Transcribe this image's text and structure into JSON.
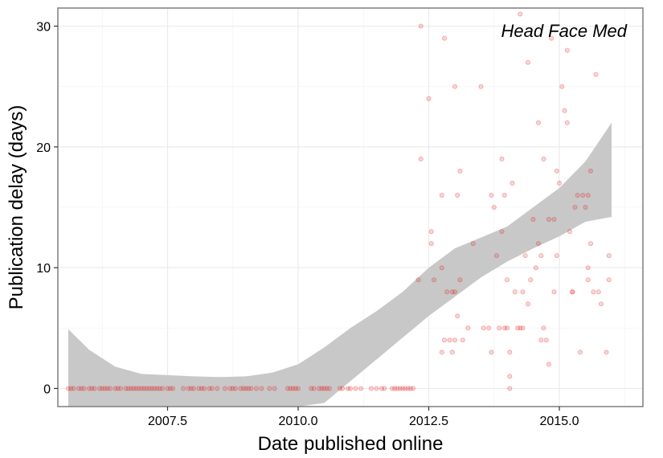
{
  "chart_data": {
    "type": "scatter",
    "title": "",
    "xlabel": "Date published online",
    "ylabel": "Publication delay (days)",
    "annotation": "Head Face Med",
    "xlim": [
      2005.4,
      2016.6
    ],
    "ylim": [
      -1.5,
      31.5
    ],
    "x_ticks": [
      2007.5,
      2010.0,
      2012.5,
      2015.0
    ],
    "x_tick_labels": [
      "2007.5",
      "2010.0",
      "2012.5",
      "2015.0"
    ],
    "y_ticks": [
      0,
      10,
      20,
      30
    ],
    "y_tick_labels": [
      "0",
      "10",
      "20",
      "30"
    ],
    "grid": true,
    "point_color": "#e31a1c",
    "band_color": "#c8c8c8",
    "panel_border_color": "#7f7f7f",
    "grid_color": "#ebebeb",
    "points": [
      [
        5.6,
        0
      ],
      [
        5.65,
        0
      ],
      [
        5.7,
        0
      ],
      [
        5.8,
        0
      ],
      [
        5.85,
        0
      ],
      [
        5.9,
        0
      ],
      [
        6.0,
        0
      ],
      [
        6.05,
        0
      ],
      [
        6.1,
        0
      ],
      [
        6.2,
        0
      ],
      [
        6.25,
        0
      ],
      [
        6.3,
        0
      ],
      [
        6.35,
        0
      ],
      [
        6.4,
        0
      ],
      [
        6.5,
        0
      ],
      [
        6.55,
        0
      ],
      [
        6.6,
        0
      ],
      [
        6.7,
        0
      ],
      [
        6.75,
        0
      ],
      [
        6.8,
        0
      ],
      [
        6.85,
        0
      ],
      [
        6.9,
        0
      ],
      [
        6.95,
        0
      ],
      [
        7.0,
        0
      ],
      [
        7.05,
        0
      ],
      [
        7.1,
        0
      ],
      [
        7.15,
        0
      ],
      [
        7.2,
        0
      ],
      [
        7.25,
        0
      ],
      [
        7.3,
        0
      ],
      [
        7.35,
        0
      ],
      [
        7.4,
        0
      ],
      [
        7.5,
        0
      ],
      [
        7.55,
        0
      ],
      [
        7.6,
        0
      ],
      [
        7.8,
        0
      ],
      [
        7.9,
        0
      ],
      [
        7.95,
        0
      ],
      [
        8.0,
        0
      ],
      [
        8.1,
        0
      ],
      [
        8.15,
        0
      ],
      [
        8.2,
        0
      ],
      [
        8.3,
        0
      ],
      [
        8.35,
        0
      ],
      [
        8.45,
        0
      ],
      [
        8.6,
        0
      ],
      [
        8.7,
        0
      ],
      [
        8.75,
        0
      ],
      [
        8.8,
        0
      ],
      [
        8.9,
        0
      ],
      [
        8.95,
        0
      ],
      [
        9.0,
        0
      ],
      [
        9.05,
        0
      ],
      [
        9.1,
        0
      ],
      [
        9.2,
        0
      ],
      [
        9.3,
        0
      ],
      [
        9.45,
        0
      ],
      [
        9.55,
        0
      ],
      [
        9.8,
        0
      ],
      [
        9.85,
        0
      ],
      [
        9.9,
        0
      ],
      [
        9.95,
        0
      ],
      [
        10.0,
        0
      ],
      [
        10.25,
        0
      ],
      [
        10.3,
        0
      ],
      [
        10.4,
        0
      ],
      [
        10.45,
        0
      ],
      [
        10.5,
        0
      ],
      [
        10.55,
        0
      ],
      [
        10.6,
        0
      ],
      [
        10.8,
        0
      ],
      [
        10.85,
        0
      ],
      [
        10.95,
        0
      ],
      [
        11.0,
        0
      ],
      [
        11.1,
        0
      ],
      [
        11.2,
        0
      ],
      [
        11.4,
        0
      ],
      [
        11.5,
        0
      ],
      [
        11.6,
        0
      ],
      [
        11.65,
        0
      ],
      [
        11.8,
        0
      ],
      [
        11.85,
        0
      ],
      [
        11.9,
        0
      ],
      [
        11.95,
        0
      ],
      [
        12.0,
        0
      ],
      [
        12.05,
        0
      ],
      [
        12.1,
        0
      ],
      [
        12.15,
        0
      ],
      [
        12.2,
        0
      ],
      [
        12.35,
        30
      ],
      [
        12.35,
        19
      ],
      [
        12.5,
        24
      ],
      [
        12.55,
        13
      ],
      [
        12.55,
        12
      ],
      [
        12.6,
        9
      ],
      [
        12.3,
        9
      ],
      [
        12.8,
        29
      ],
      [
        12.75,
        16
      ],
      [
        12.75,
        10
      ],
      [
        12.75,
        3
      ],
      [
        12.8,
        4
      ],
      [
        12.85,
        8
      ],
      [
        12.9,
        4
      ],
      [
        12.95,
        8
      ],
      [
        12.95,
        3
      ],
      [
        13.0,
        25
      ],
      [
        13.0,
        8
      ],
      [
        13.0,
        4
      ],
      [
        13.05,
        16
      ],
      [
        13.05,
        6
      ],
      [
        13.1,
        18
      ],
      [
        13.1,
        9
      ],
      [
        13.15,
        4
      ],
      [
        13.25,
        5
      ],
      [
        13.35,
        12
      ],
      [
        13.5,
        25
      ],
      [
        13.55,
        5
      ],
      [
        13.65,
        5
      ],
      [
        13.7,
        16
      ],
      [
        13.7,
        3
      ],
      [
        13.75,
        15
      ],
      [
        13.8,
        11
      ],
      [
        13.85,
        5
      ],
      [
        13.9,
        19
      ],
      [
        13.9,
        13
      ],
      [
        13.95,
        16
      ],
      [
        14.0,
        9
      ],
      [
        14.0,
        5
      ],
      [
        14.05,
        1
      ],
      [
        14.05,
        0
      ],
      [
        14.1,
        17
      ],
      [
        14.2,
        5
      ],
      [
        14.25,
        5
      ],
      [
        14.25,
        31
      ],
      [
        14.3,
        8
      ],
      [
        14.3,
        5
      ],
      [
        14.35,
        11
      ],
      [
        14.4,
        27
      ],
      [
        14.4,
        7
      ],
      [
        14.45,
        9
      ],
      [
        14.5,
        14
      ],
      [
        14.55,
        10
      ],
      [
        14.6,
        22
      ],
      [
        14.6,
        12
      ],
      [
        14.65,
        11
      ],
      [
        14.65,
        4
      ],
      [
        14.7,
        19
      ],
      [
        14.7,
        5
      ],
      [
        14.75,
        4
      ],
      [
        14.8,
        14
      ],
      [
        14.8,
        2
      ],
      [
        14.85,
        29
      ],
      [
        14.9,
        14
      ],
      [
        14.95,
        18
      ],
      [
        14.95,
        11
      ],
      [
        15.0,
        17
      ],
      [
        15.05,
        25
      ],
      [
        15.1,
        23
      ],
      [
        15.15,
        28
      ],
      [
        15.15,
        22
      ],
      [
        15.2,
        13
      ],
      [
        15.25,
        8
      ],
      [
        15.3,
        15
      ],
      [
        15.35,
        16
      ],
      [
        15.4,
        3
      ],
      [
        15.45,
        16
      ],
      [
        15.5,
        15
      ],
      [
        15.55,
        16
      ],
      [
        15.55,
        10
      ],
      [
        15.6,
        18
      ],
      [
        15.65,
        8
      ],
      [
        15.7,
        26
      ],
      [
        15.75,
        8
      ],
      [
        15.8,
        7
      ],
      [
        15.9,
        3
      ],
      [
        15.95,
        11
      ],
      [
        15.95,
        9
      ],
      [
        15.25,
        8
      ],
      [
        15.55,
        9
      ],
      [
        14.15,
        8
      ],
      [
        14.9,
        8
      ],
      [
        13.95,
        5
      ],
      [
        14.05,
        3
      ],
      [
        15.6,
        12
      ]
    ],
    "band": {
      "x": [
        5.6,
        6.0,
        6.5,
        7.0,
        7.5,
        8.0,
        8.5,
        9.0,
        9.5,
        10.0,
        10.5,
        11.0,
        11.5,
        12.0,
        12.5,
        13.0,
        13.5,
        14.0,
        14.5,
        15.0,
        15.5,
        16.0
      ],
      "upper": [
        4.9,
        3.2,
        1.8,
        1.2,
        1.1,
        1.0,
        0.95,
        1.0,
        1.3,
        2.0,
        3.4,
        5.0,
        6.4,
        8.0,
        10.0,
        11.6,
        12.5,
        13.4,
        15.0,
        16.6,
        18.8,
        22.0
      ],
      "lower": [
        -1.5,
        -1.5,
        -1.5,
        -1.5,
        -1.5,
        -1.5,
        -1.5,
        -1.5,
        -1.5,
        -1.5,
        -1.2,
        0.6,
        2.4,
        4.2,
        6.0,
        7.6,
        9.2,
        10.5,
        11.6,
        12.6,
        13.8,
        14.2
      ]
    }
  }
}
